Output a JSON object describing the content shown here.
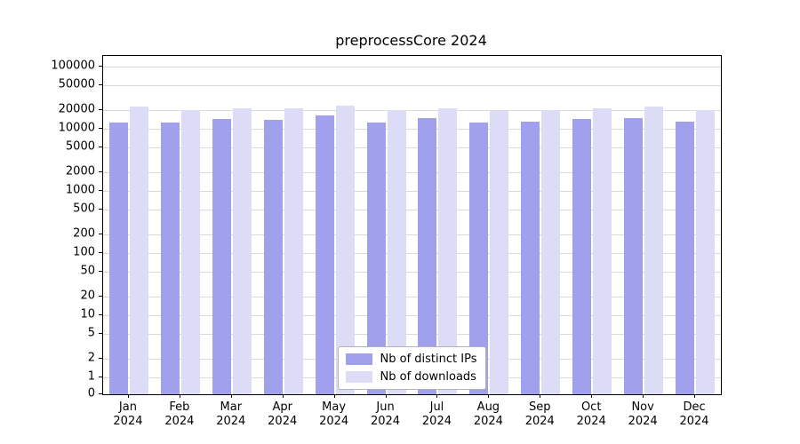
{
  "chart_data": {
    "type": "bar",
    "title": "preprocessCore 2024",
    "yscale": "log",
    "grid": true,
    "legend_position": "lower-center-inside",
    "ylim": [
      0,
      150000
    ],
    "yticks": [
      0,
      1,
      2,
      5,
      10,
      20,
      50,
      100,
      200,
      500,
      1000,
      2000,
      5000,
      10000,
      20000,
      50000,
      100000
    ],
    "categories": [
      "Jan 2024",
      "Feb 2024",
      "Mar 2024",
      "Apr 2024",
      "May 2024",
      "Jun 2024",
      "Jul 2024",
      "Aug 2024",
      "Sep 2024",
      "Oct 2024",
      "Nov 2024",
      "Dec 2024"
    ],
    "series": [
      {
        "name": "Nb of distinct IPs",
        "color": "#a0a0ec",
        "values": [
          12500,
          12800,
          14500,
          13800,
          16500,
          12500,
          14800,
          12800,
          13000,
          14500,
          15000,
          13000
        ]
      },
      {
        "name": "Nb of downloads",
        "color": "#dcdcf6",
        "values": [
          22500,
          20000,
          21500,
          21000,
          23500,
          20000,
          21500,
          19500,
          20000,
          21500,
          23000,
          20000
        ]
      }
    ]
  }
}
